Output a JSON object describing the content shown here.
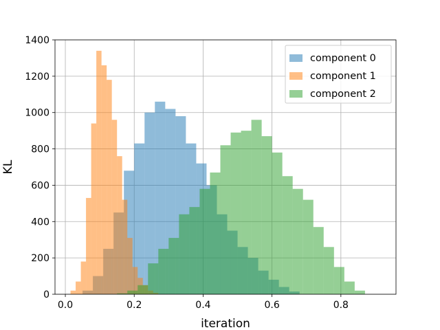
{
  "chart_data": {
    "type": "histogram",
    "xlabel": "iteration",
    "ylabel": "KL",
    "xlim": [
      -0.03,
      0.96
    ],
    "ylim": [
      0,
      1400
    ],
    "x_ticks": [
      0.0,
      0.2,
      0.4,
      0.6,
      0.8
    ],
    "x_tick_labels": [
      "0.0",
      "0.2",
      "0.4",
      "0.6",
      "0.8"
    ],
    "y_ticks": [
      0,
      200,
      400,
      600,
      800,
      1000,
      1200,
      1400
    ],
    "y_tick_labels": [
      "0",
      "200",
      "400",
      "600",
      "800",
      "1000",
      "1200",
      "1400"
    ],
    "grid": true,
    "legend_position": "top-right",
    "series": [
      {
        "name": "component 0",
        "color": "#1f77b4",
        "alpha": 0.5,
        "bins": [
          {
            "x0": 0.05,
            "x1": 0.08,
            "count": 20
          },
          {
            "x0": 0.08,
            "x1": 0.11,
            "count": 100
          },
          {
            "x0": 0.11,
            "x1": 0.14,
            "count": 250
          },
          {
            "x0": 0.14,
            "x1": 0.17,
            "count": 450
          },
          {
            "x0": 0.17,
            "x1": 0.2,
            "count": 680
          },
          {
            "x0": 0.2,
            "x1": 0.23,
            "count": 830
          },
          {
            "x0": 0.23,
            "x1": 0.26,
            "count": 1000
          },
          {
            "x0": 0.26,
            "x1": 0.29,
            "count": 1060
          },
          {
            "x0": 0.29,
            "x1": 0.32,
            "count": 1020
          },
          {
            "x0": 0.32,
            "x1": 0.35,
            "count": 980
          },
          {
            "x0": 0.35,
            "x1": 0.38,
            "count": 830
          },
          {
            "x0": 0.38,
            "x1": 0.41,
            "count": 720
          },
          {
            "x0": 0.41,
            "x1": 0.44,
            "count": 600
          },
          {
            "x0": 0.44,
            "x1": 0.47,
            "count": 440
          },
          {
            "x0": 0.47,
            "x1": 0.5,
            "count": 350
          },
          {
            "x0": 0.5,
            "x1": 0.53,
            "count": 260
          },
          {
            "x0": 0.53,
            "x1": 0.56,
            "count": 200
          },
          {
            "x0": 0.56,
            "x1": 0.59,
            "count": 130
          },
          {
            "x0": 0.59,
            "x1": 0.62,
            "count": 80
          },
          {
            "x0": 0.62,
            "x1": 0.65,
            "count": 40
          },
          {
            "x0": 0.65,
            "x1": 0.68,
            "count": 15
          }
        ]
      },
      {
        "name": "component 1",
        "color": "#ff7f0e",
        "alpha": 0.5,
        "bins": [
          {
            "x0": 0.015,
            "x1": 0.03,
            "count": 20
          },
          {
            "x0": 0.03,
            "x1": 0.045,
            "count": 70
          },
          {
            "x0": 0.045,
            "x1": 0.06,
            "count": 180
          },
          {
            "x0": 0.06,
            "x1": 0.075,
            "count": 530
          },
          {
            "x0": 0.075,
            "x1": 0.09,
            "count": 940
          },
          {
            "x0": 0.09,
            "x1": 0.105,
            "count": 1340
          },
          {
            "x0": 0.105,
            "x1": 0.12,
            "count": 1260
          },
          {
            "x0": 0.12,
            "x1": 0.135,
            "count": 1180
          },
          {
            "x0": 0.135,
            "x1": 0.15,
            "count": 960
          },
          {
            "x0": 0.15,
            "x1": 0.165,
            "count": 760
          },
          {
            "x0": 0.165,
            "x1": 0.18,
            "count": 520
          },
          {
            "x0": 0.18,
            "x1": 0.195,
            "count": 310
          },
          {
            "x0": 0.195,
            "x1": 0.21,
            "count": 150
          },
          {
            "x0": 0.21,
            "x1": 0.225,
            "count": 90
          },
          {
            "x0": 0.225,
            "x1": 0.24,
            "count": 50
          },
          {
            "x0": 0.24,
            "x1": 0.255,
            "count": 20
          },
          {
            "x0": 0.255,
            "x1": 0.27,
            "count": 8
          }
        ]
      },
      {
        "name": "component 2",
        "color": "#2ca02c",
        "alpha": 0.5,
        "bins": [
          {
            "x0": 0.15,
            "x1": 0.18,
            "count": 5
          },
          {
            "x0": 0.18,
            "x1": 0.21,
            "count": 20
          },
          {
            "x0": 0.21,
            "x1": 0.24,
            "count": 50
          },
          {
            "x0": 0.24,
            "x1": 0.27,
            "count": 170
          },
          {
            "x0": 0.27,
            "x1": 0.3,
            "count": 250
          },
          {
            "x0": 0.3,
            "x1": 0.33,
            "count": 310
          },
          {
            "x0": 0.33,
            "x1": 0.36,
            "count": 440
          },
          {
            "x0": 0.36,
            "x1": 0.39,
            "count": 480
          },
          {
            "x0": 0.39,
            "x1": 0.42,
            "count": 580
          },
          {
            "x0": 0.42,
            "x1": 0.45,
            "count": 670
          },
          {
            "x0": 0.45,
            "x1": 0.48,
            "count": 820
          },
          {
            "x0": 0.48,
            "x1": 0.51,
            "count": 890
          },
          {
            "x0": 0.51,
            "x1": 0.54,
            "count": 900
          },
          {
            "x0": 0.54,
            "x1": 0.57,
            "count": 960
          },
          {
            "x0": 0.57,
            "x1": 0.6,
            "count": 870
          },
          {
            "x0": 0.6,
            "x1": 0.63,
            "count": 780
          },
          {
            "x0": 0.63,
            "x1": 0.66,
            "count": 650
          },
          {
            "x0": 0.66,
            "x1": 0.69,
            "count": 580
          },
          {
            "x0": 0.69,
            "x1": 0.72,
            "count": 520
          },
          {
            "x0": 0.72,
            "x1": 0.75,
            "count": 370
          },
          {
            "x0": 0.75,
            "x1": 0.78,
            "count": 260
          },
          {
            "x0": 0.78,
            "x1": 0.81,
            "count": 150
          },
          {
            "x0": 0.81,
            "x1": 0.84,
            "count": 70
          },
          {
            "x0": 0.84,
            "x1": 0.87,
            "count": 20
          }
        ]
      }
    ]
  }
}
